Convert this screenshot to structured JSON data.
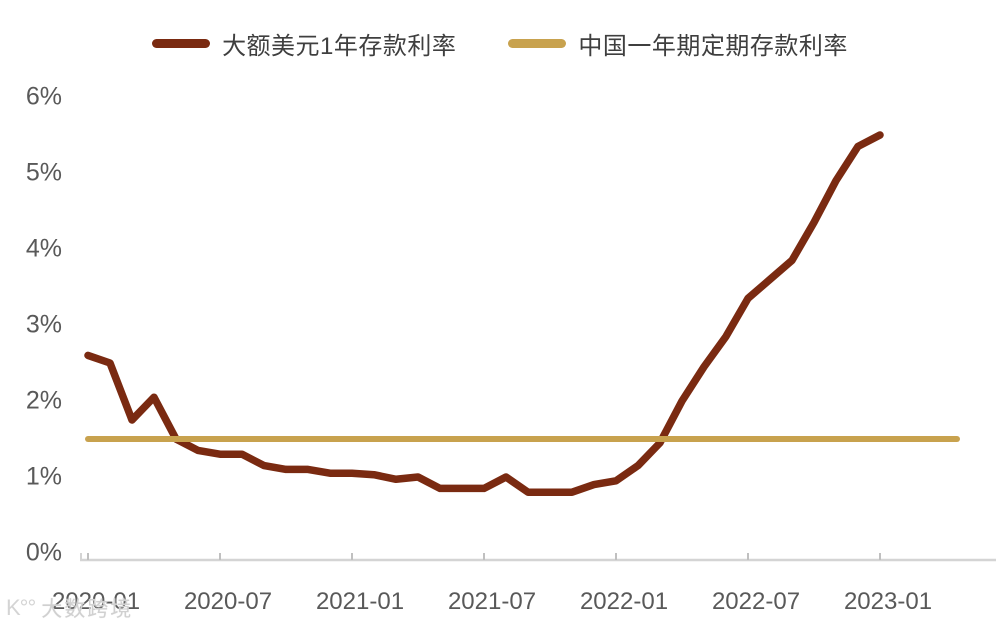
{
  "legend": [
    {
      "label": "大额美元1年存款利率",
      "color": "#7a2a11"
    },
    {
      "label": "中国一年期定期存款利率",
      "color": "#c8a24e"
    }
  ],
  "watermark": {
    "logo": "K°°",
    "text": "大数跨境"
  },
  "chart_data": {
    "type": "line",
    "title": "",
    "xlabel": "",
    "ylabel": "",
    "x": [
      "2020-01",
      "2020-02",
      "2020-03",
      "2020-04",
      "2020-05",
      "2020-06",
      "2020-07",
      "2020-08",
      "2020-09",
      "2020-10",
      "2020-11",
      "2020-12",
      "2021-01",
      "2021-02",
      "2021-03",
      "2021-04",
      "2021-05",
      "2021-06",
      "2021-07",
      "2021-08",
      "2021-09",
      "2021-10",
      "2021-11",
      "2021-12",
      "2022-01",
      "2022-02",
      "2022-03",
      "2022-04",
      "2022-05",
      "2022-06",
      "2022-07",
      "2022-08",
      "2022-09",
      "2022-10",
      "2022-11",
      "2022-12",
      "2023-01"
    ],
    "series": [
      {
        "name": "大额美元1年存款利率",
        "color": "#7a2a11",
        "stroke_width": 7.5,
        "values": [
          2.6,
          2.5,
          1.75,
          2.05,
          1.5,
          1.35,
          1.3,
          1.3,
          1.15,
          1.1,
          1.1,
          1.05,
          1.05,
          1.03,
          0.97,
          1.0,
          0.85,
          0.85,
          0.85,
          1.0,
          0.8,
          0.8,
          0.8,
          0.9,
          0.95,
          1.15,
          1.45,
          2.0,
          2.45,
          2.85,
          3.35,
          3.6,
          3.85,
          4.35,
          4.9,
          5.35,
          5.5
        ]
      },
      {
        "name": "中国一年期定期存款利率",
        "color": "#c8a24e",
        "stroke_width": 6,
        "constant_value": 1.5,
        "month_span": [
          0,
          39.5
        ]
      }
    ],
    "yticks": {
      "values": [
        0,
        1,
        2,
        3,
        4,
        5,
        6
      ],
      "labels": [
        "0%",
        "1%",
        "2%",
        "3%",
        "4%",
        "5%",
        "6%"
      ]
    },
    "xticks": {
      "month_index": [
        0,
        6,
        12,
        18,
        24,
        30,
        36
      ],
      "labels": [
        "2020-01",
        "2020-07",
        "2021-01",
        "2021-07",
        "2022-01",
        "2022-07",
        "2023-01"
      ]
    },
    "ylim": [
      0,
      6
    ],
    "grid": false,
    "legend_position": "top-center",
    "axis_color": "#d4d4d4",
    "tick_color": "#c0c0c0",
    "label_color": "#595959"
  }
}
